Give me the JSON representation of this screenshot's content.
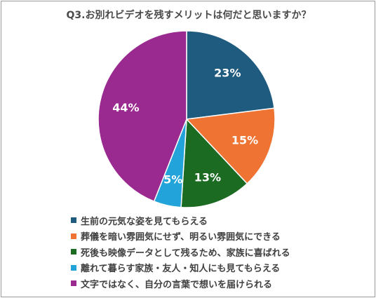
{
  "chart_data": {
    "type": "pie",
    "title": "Q3.お別れビデオを残すメリットは何だと思いますか？",
    "slices": [
      {
        "label": "生前の元気な姿を見てもらえる",
        "value": 23,
        "display": "23%",
        "color": "#1f5b7e"
      },
      {
        "label": "葬儀を暗い雰囲気にせず、明るい雰囲気にできる",
        "value": 15,
        "display": "15%",
        "color": "#ef7332"
      },
      {
        "label": "死後も映像データとして残るため、家族に喜ばれる",
        "value": 13,
        "display": "13%",
        "color": "#1b6b23"
      },
      {
        "label": "離れて暮らす家族・友人・知人にも見てもらえる",
        "value": 5,
        "display": "5%",
        "color": "#22a3d9"
      },
      {
        "label": "文字ではなく、自分の言葉で想いを届けられる",
        "value": 44,
        "display": "44%",
        "color": "#9a2a8f"
      }
    ],
    "start": "12 o'clock",
    "direction": "clockwise",
    "legend_position": "bottom"
  }
}
